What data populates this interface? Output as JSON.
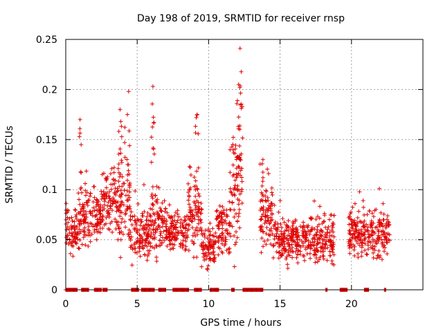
{
  "chart_data": {
    "type": "scatter",
    "title": "Day 198 of 2019, SRMTID for receiver rnsp",
    "xlabel": "GPS time / hours",
    "ylabel": "SRMTID / TECUs",
    "xlim": [
      0,
      25
    ],
    "ylim": [
      0,
      0.25
    ],
    "x_ticks": [
      {
        "value": 0,
        "label": "0"
      },
      {
        "value": 5,
        "label": "5"
      },
      {
        "value": 10,
        "label": "10"
      },
      {
        "value": 15,
        "label": "15"
      },
      {
        "value": 20,
        "label": "20"
      }
    ],
    "y_ticks": [
      {
        "value": 0,
        "label": "0"
      },
      {
        "value": 0.05,
        "label": "0.05"
      },
      {
        "value": 0.1,
        "label": "0.1"
      },
      {
        "value": 0.15,
        "label": "0.15"
      },
      {
        "value": 0.2,
        "label": "0.2"
      },
      {
        "value": 0.25,
        "label": "0.25"
      }
    ],
    "grid": true,
    "marker": "+",
    "color": "#e00000",
    "series": [
      {
        "name": "SRMTID",
        "segments": [
          {
            "t0": 0.0,
            "t1": 1.0,
            "base": 0.06,
            "amp": 0.02
          },
          {
            "t0": 1.0,
            "t1": 2.5,
            "base": 0.075,
            "amp": 0.025
          },
          {
            "t0": 2.5,
            "t1": 3.5,
            "base": 0.09,
            "amp": 0.03
          },
          {
            "t0": 3.5,
            "t1": 4.5,
            "base": 0.085,
            "amp": 0.04
          },
          {
            "t0": 4.5,
            "t1": 6.0,
            "base": 0.055,
            "amp": 0.025
          },
          {
            "t0": 6.0,
            "t1": 7.0,
            "base": 0.065,
            "amp": 0.03
          },
          {
            "t0": 7.0,
            "t1": 8.5,
            "base": 0.058,
            "amp": 0.018
          },
          {
            "t0": 8.5,
            "t1": 9.5,
            "base": 0.075,
            "amp": 0.03
          },
          {
            "t0": 9.5,
            "t1": 10.5,
            "base": 0.042,
            "amp": 0.018
          },
          {
            "t0": 10.5,
            "t1": 11.5,
            "base": 0.062,
            "amp": 0.025
          },
          {
            "t0": 11.5,
            "t1": 12.4,
            "base": 0.1,
            "amp": 0.05
          },
          {
            "t0": 13.6,
            "t1": 14.5,
            "base": 0.075,
            "amp": 0.03
          },
          {
            "t0": 14.5,
            "t1": 16.5,
            "base": 0.05,
            "amp": 0.02
          },
          {
            "t0": 16.5,
            "t1": 18.8,
            "base": 0.05,
            "amp": 0.02
          },
          {
            "t0": 19.8,
            "t1": 22.7,
            "base": 0.055,
            "amp": 0.02
          }
        ],
        "peaks": [
          {
            "x": 1.0,
            "y": 0.17
          },
          {
            "x": 3.8,
            "y": 0.18
          },
          {
            "x": 4.4,
            "y": 0.198
          },
          {
            "x": 6.1,
            "y": 0.203
          },
          {
            "x": 9.2,
            "y": 0.175
          },
          {
            "x": 12.1,
            "y": 0.205
          },
          {
            "x": 12.2,
            "y": 0.241
          },
          {
            "x": 13.8,
            "y": 0.13
          }
        ],
        "zero_ranges": [
          [
            0.0,
            0.8
          ],
          [
            1.1,
            1.6
          ],
          [
            2.0,
            2.5
          ],
          [
            2.6,
            2.9
          ],
          [
            4.6,
            5.1
          ],
          [
            5.3,
            6.2
          ],
          [
            6.5,
            7.0
          ],
          [
            7.5,
            8.6
          ],
          [
            9.0,
            9.5
          ],
          [
            10.1,
            10.7
          ],
          [
            11.6,
            11.8
          ],
          [
            12.4,
            13.8
          ],
          [
            18.2,
            18.3
          ],
          [
            19.2,
            19.7
          ],
          [
            20.9,
            21.2
          ],
          [
            22.3,
            22.4
          ]
        ]
      }
    ]
  }
}
